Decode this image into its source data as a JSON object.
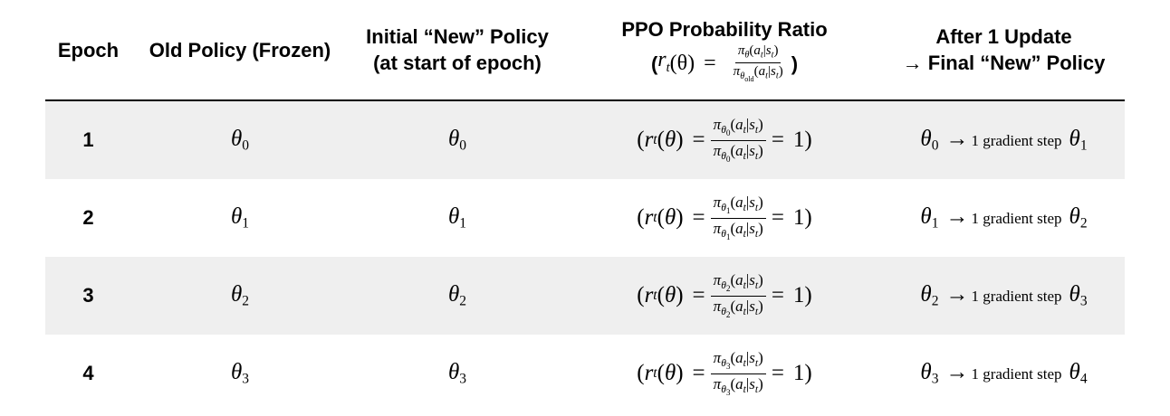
{
  "headers": {
    "epoch": "Epoch",
    "old_policy": "Old Policy (Frozen)",
    "initial_new_line1": "Initial “New” Policy",
    "initial_new_line2": "(at start of epoch)",
    "ratio_line1": "PPO Probability Ratio",
    "update_line1": "After 1 Update",
    "update_line2": "→ Final “New” Policy"
  },
  "ratio_header_math": {
    "open": "(",
    "r": "r",
    "t": "t",
    "theta_arg": "(θ)",
    "eq": "=",
    "pi": "π",
    "theta": "θ",
    "a": "a",
    "s": "s",
    "old": "old",
    "close": ")"
  },
  "math_symbols": {
    "theta": "θ",
    "pi": "π",
    "equals": "=",
    "one": "1)",
    "arrow": "→",
    "step": "1 gradient step"
  },
  "rows": [
    {
      "epoch": "1",
      "old_idx": "0",
      "init_idx": "0",
      "ratio_idx": "0",
      "from_idx": "0",
      "to_idx": "1"
    },
    {
      "epoch": "2",
      "old_idx": "1",
      "init_idx": "1",
      "ratio_idx": "1",
      "from_idx": "1",
      "to_idx": "2"
    },
    {
      "epoch": "3",
      "old_idx": "2",
      "init_idx": "2",
      "ratio_idx": "2",
      "from_idx": "2",
      "to_idx": "3"
    },
    {
      "epoch": "4",
      "old_idx": "3",
      "init_idx": "3",
      "ratio_idx": "3",
      "from_idx": "3",
      "to_idx": "4"
    }
  ],
  "row_shading": [
    "#efefef",
    "#ffffff",
    "#efefef",
    "#ffffff"
  ]
}
